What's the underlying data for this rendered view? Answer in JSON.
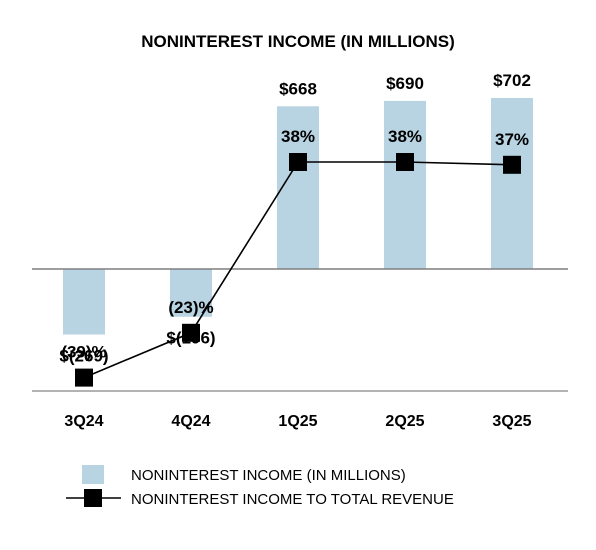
{
  "chart_data": {
    "type": "bar",
    "title": "NONINTEREST INCOME (IN MILLIONS)",
    "categories": [
      "3Q24",
      "4Q24",
      "1Q25",
      "2Q25",
      "3Q25"
    ],
    "series": [
      {
        "name": "NONINTEREST INCOME (IN MILLIONS)",
        "type": "bar",
        "values": [
          -269,
          -196,
          668,
          690,
          702
        ],
        "labels": [
          "$(269)",
          "$(196)",
          "$668",
          "$690",
          "$702"
        ],
        "color": "#b8d3e1"
      },
      {
        "name": "NONINTEREST INCOME TO TOTAL REVENUE",
        "type": "line",
        "values": [
          -39,
          -23,
          38,
          38,
          37
        ],
        "labels": [
          "(39)%",
          "(23)%",
          "38%",
          "38%",
          "37%"
        ],
        "color": "#000000"
      }
    ],
    "grid": false,
    "legend_position": "bottom"
  }
}
